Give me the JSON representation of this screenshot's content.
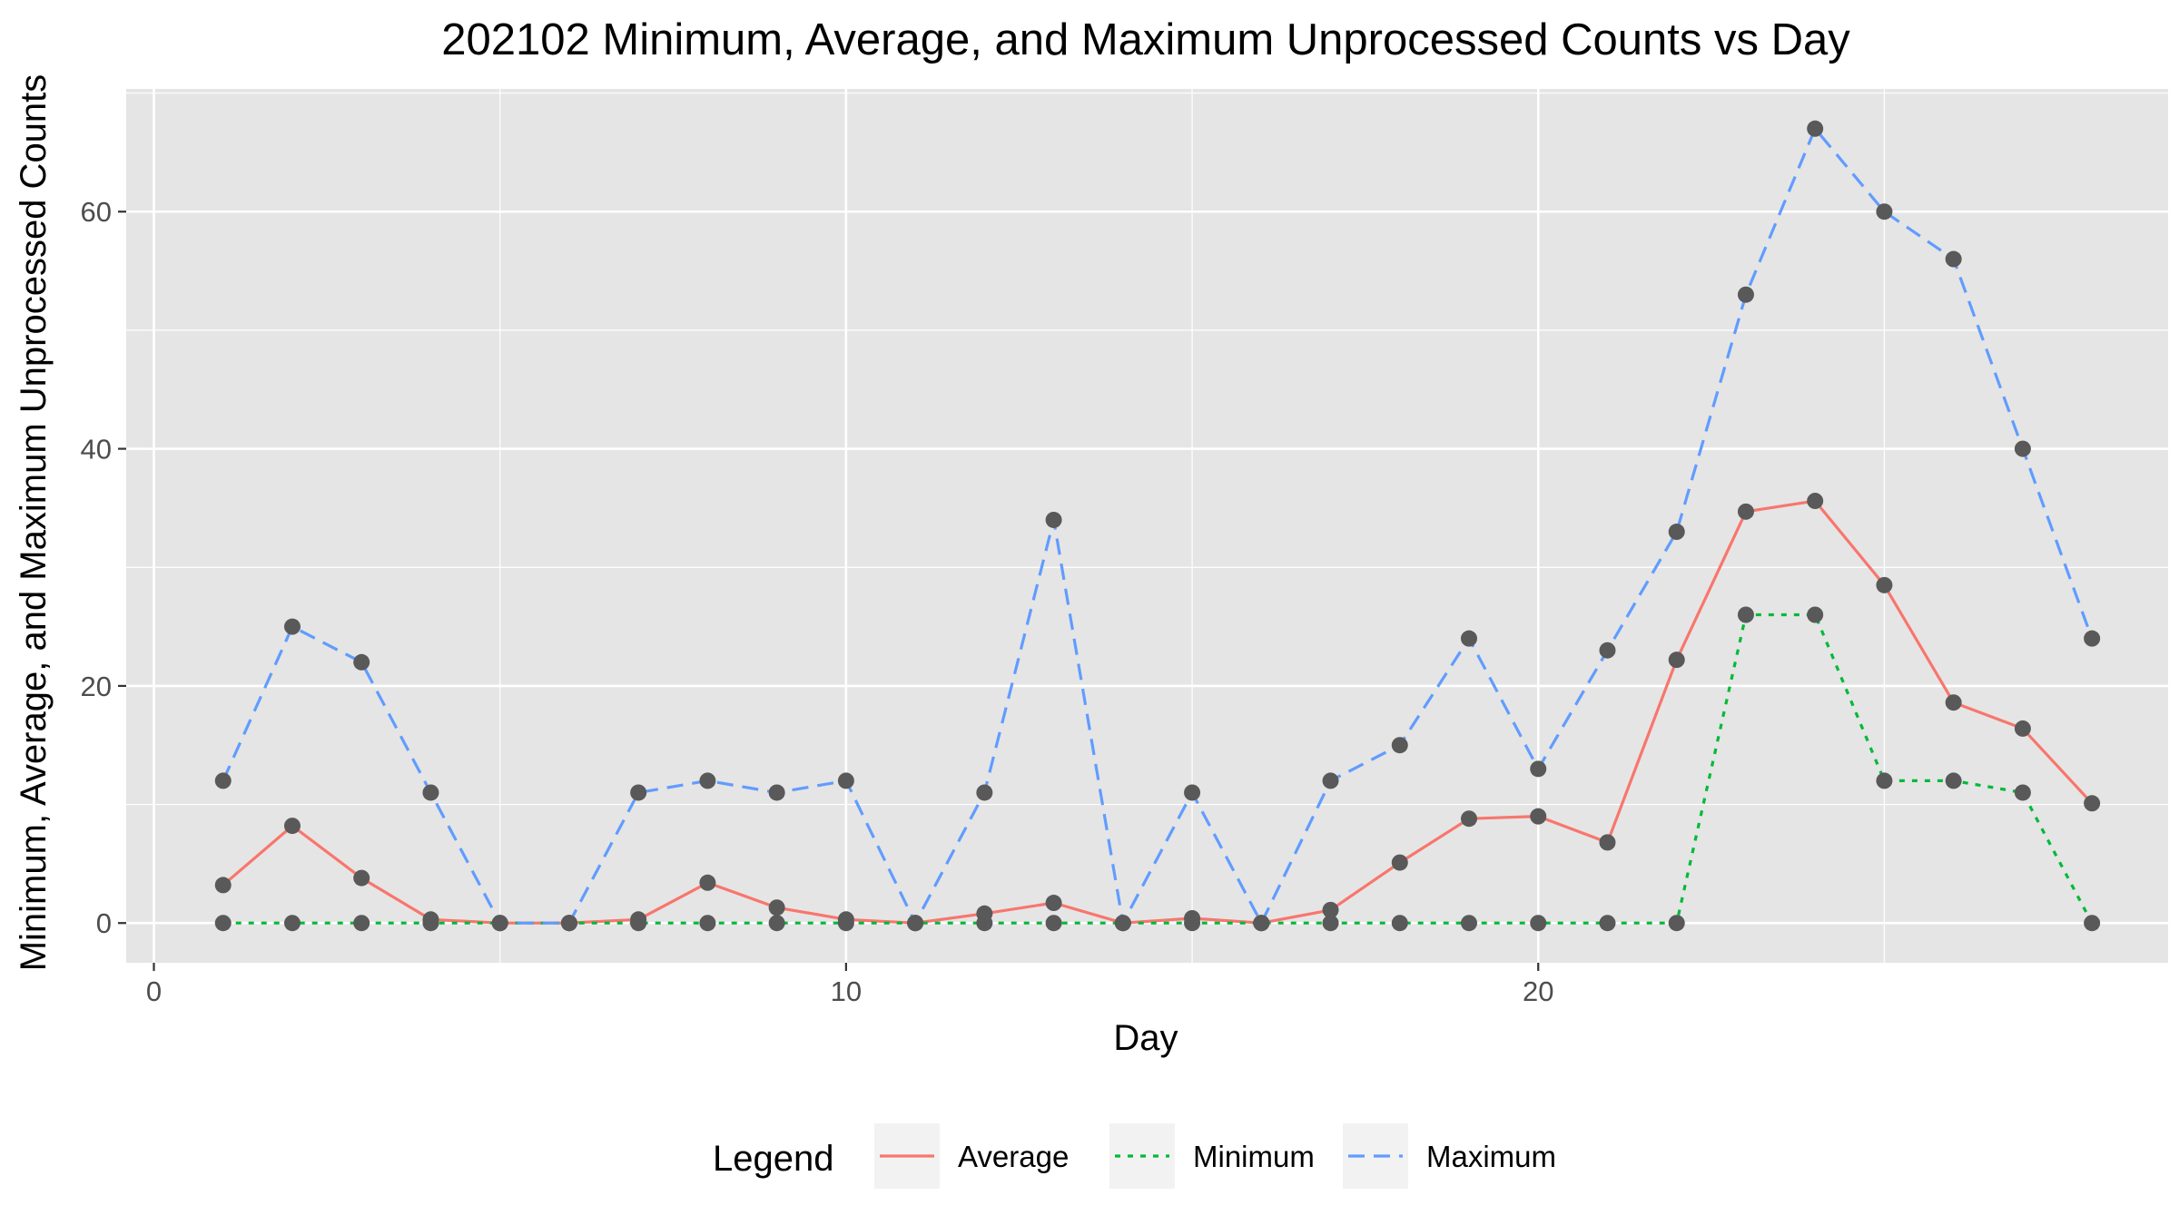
{
  "chart_data": {
    "type": "line",
    "title": "202102 Minimum, Average, and Maximum Unprocessed Counts vs Day",
    "xlabel": "Day",
    "ylabel": "Minimum, Average, and Maximum Unprocessed Counts",
    "xlim": [
      -0.4,
      29.1
    ],
    "ylim": [
      -3.35,
      70.35
    ],
    "x_ticks": [
      0,
      10,
      20
    ],
    "y_ticks": [
      0,
      20,
      40,
      60
    ],
    "grid": true,
    "legend": {
      "title": "Legend",
      "position": "bottom"
    },
    "x": [
      1,
      2,
      3,
      4,
      5,
      6,
      7,
      8,
      9,
      10,
      11,
      12,
      13,
      14,
      15,
      16,
      17,
      18,
      19,
      20,
      21,
      22,
      23,
      24,
      25,
      26,
      27,
      28
    ],
    "series": [
      {
        "name": "Average",
        "color": "#F8766D",
        "dash": "solid",
        "values": [
          3.2,
          8.2,
          3.8,
          0.3,
          0,
          0,
          0.3,
          3.4,
          1.3,
          0.3,
          0,
          0.8,
          1.7,
          0,
          0.4,
          0,
          1.1,
          5.1,
          8.8,
          9.0,
          6.8,
          22.2,
          34.7,
          35.6,
          28.5,
          18.6,
          16.4,
          10.1
        ]
      },
      {
        "name": "Minimum",
        "color": "#00BA38",
        "dash": "dotted",
        "values": [
          0,
          0,
          0,
          0,
          0,
          0,
          0,
          0,
          0,
          0,
          0,
          0,
          0,
          0,
          0,
          0,
          0,
          0,
          0,
          0,
          0,
          0,
          26,
          26,
          12,
          12,
          11,
          0
        ]
      },
      {
        "name": "Maximum",
        "color": "#619CFF",
        "dash": "dashed",
        "values": [
          12,
          25,
          22,
          11,
          0,
          0,
          11,
          12,
          11,
          12,
          0,
          11,
          34,
          0,
          11,
          0,
          12,
          15,
          24,
          13,
          23,
          33,
          53,
          67,
          60,
          56,
          40,
          24
        ]
      }
    ],
    "point_color": "#595959"
  }
}
